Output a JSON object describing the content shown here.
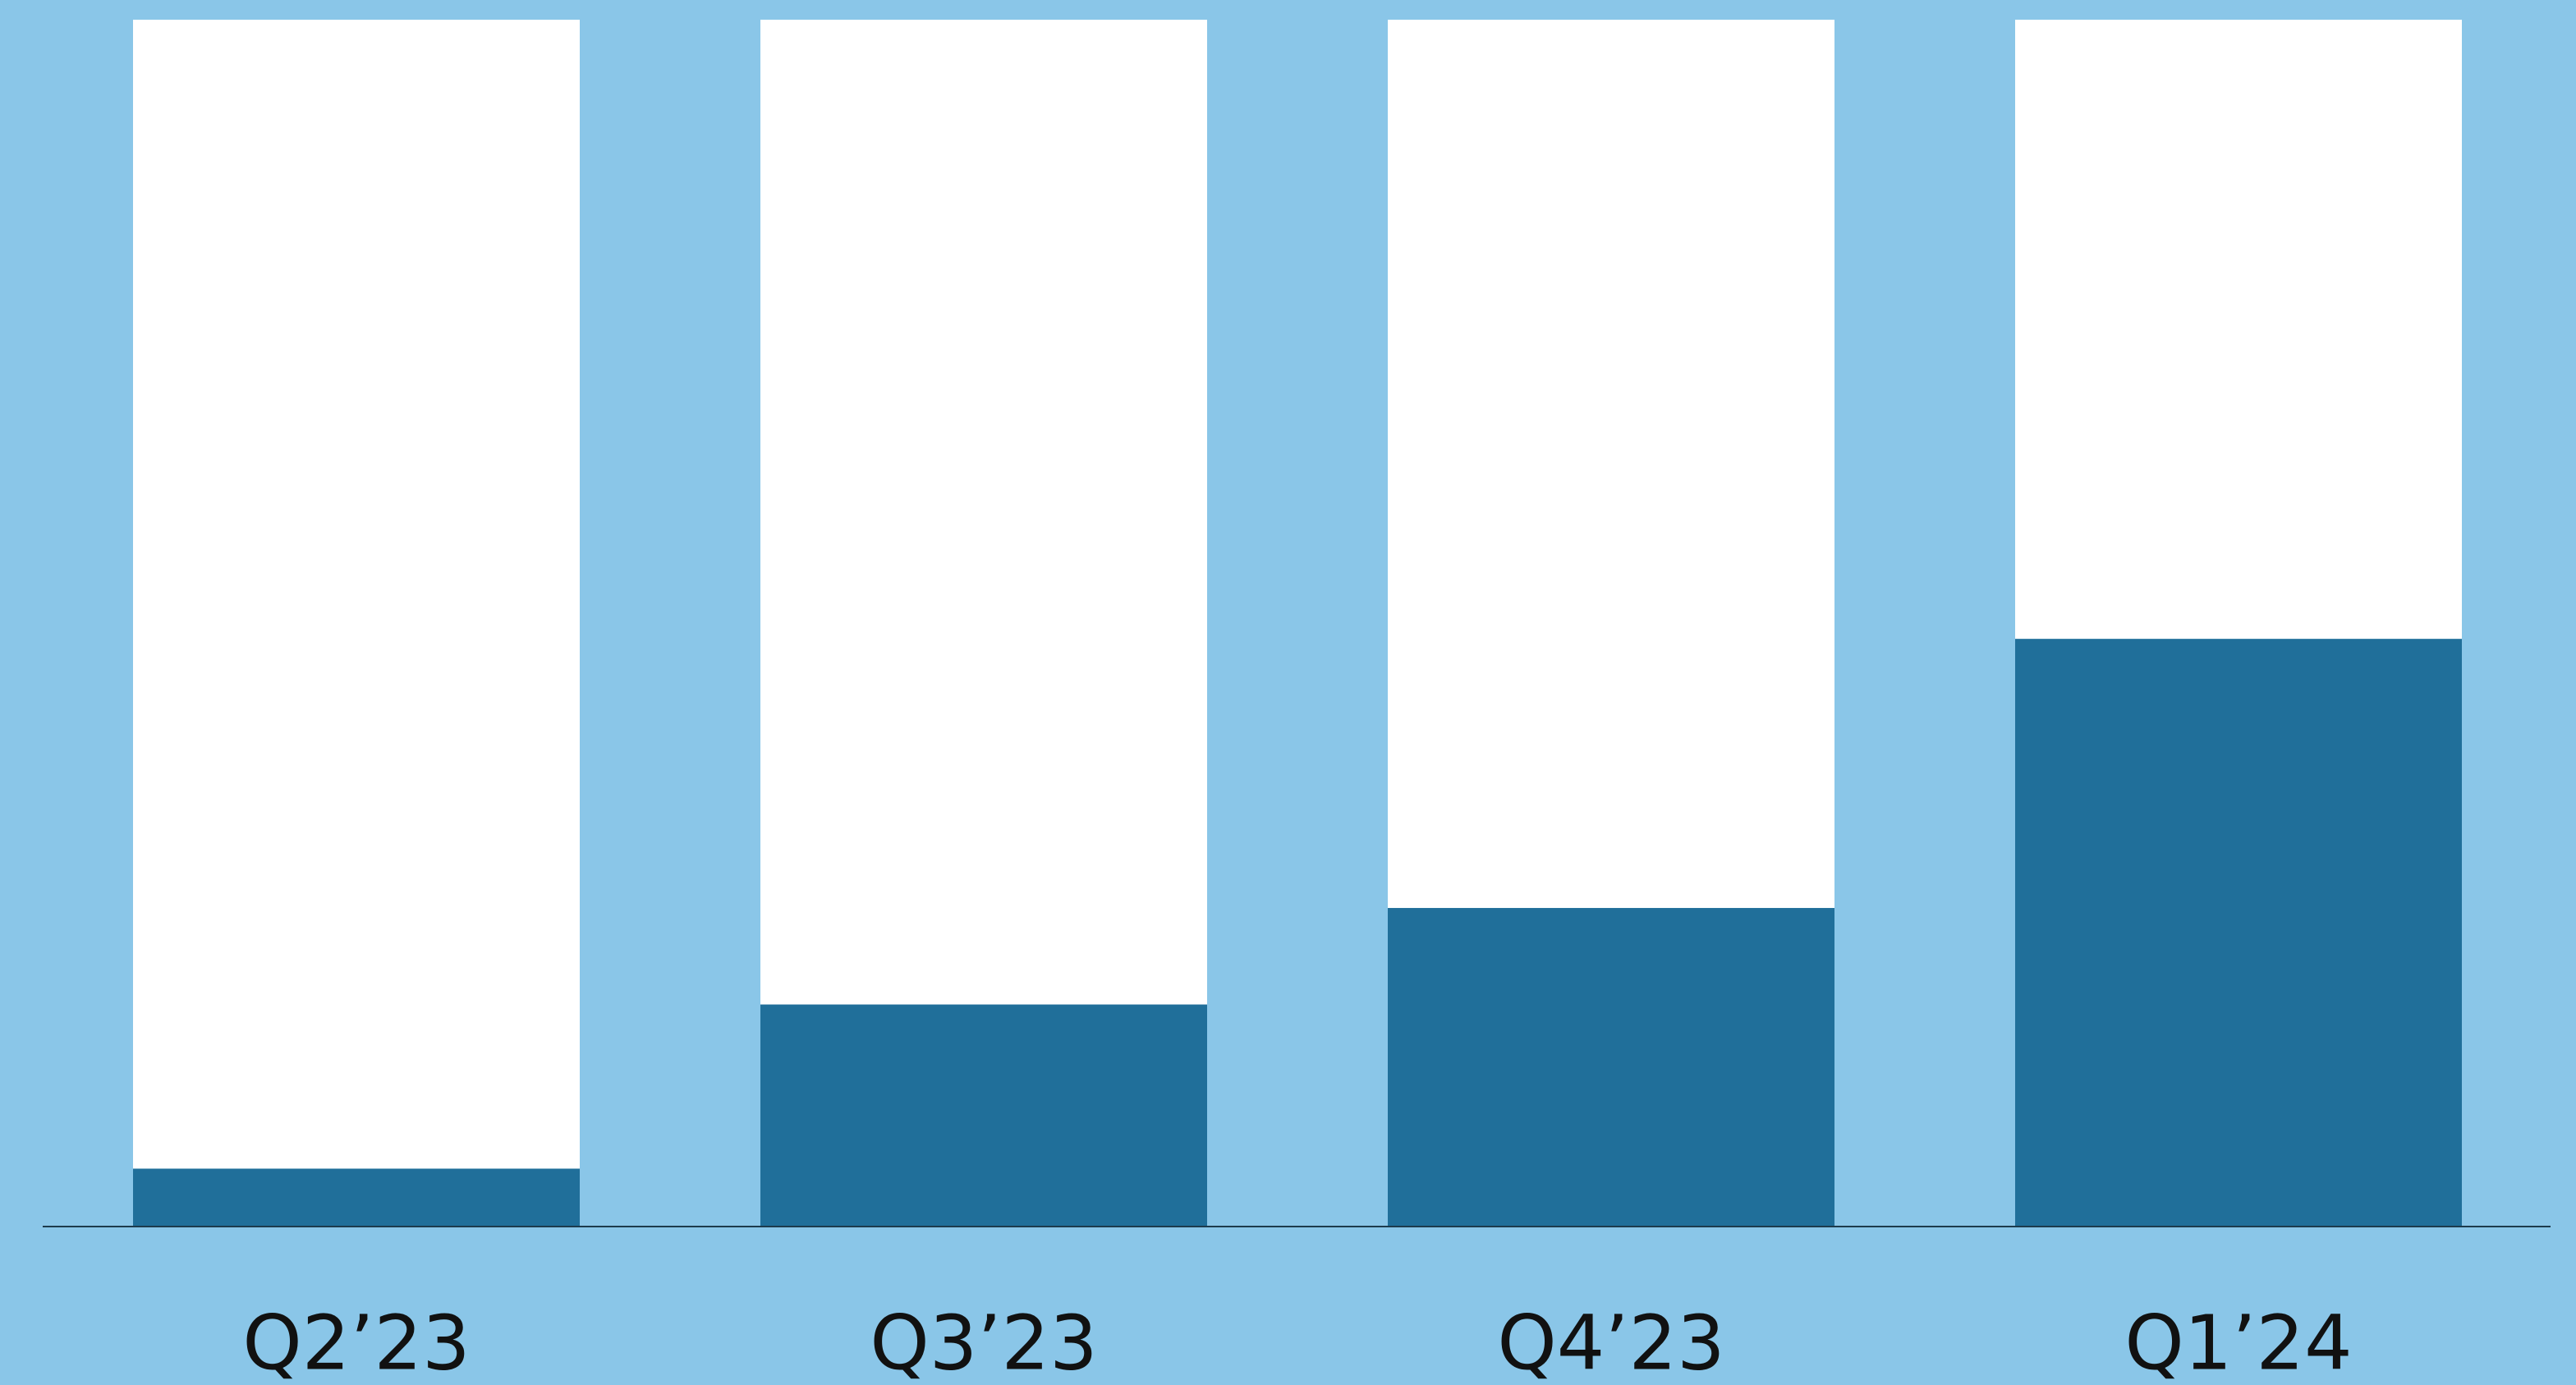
{
  "chart_data": {
    "type": "stacked_bar",
    "categories": [
      "Q2’23",
      "Q3’23",
      "Q4’23",
      "Q1’24"
    ],
    "series": [
      {
        "color": "#206f9a",
        "values": [
          4.8,
          18.4,
          26.4,
          48.7
        ]
      },
      {
        "color": "#ffffff",
        "values": [
          95.2,
          81.6,
          73.6,
          51.3
        ]
      }
    ],
    "ylim": [
      0,
      100
    ],
    "background": "#8ac6e8"
  }
}
